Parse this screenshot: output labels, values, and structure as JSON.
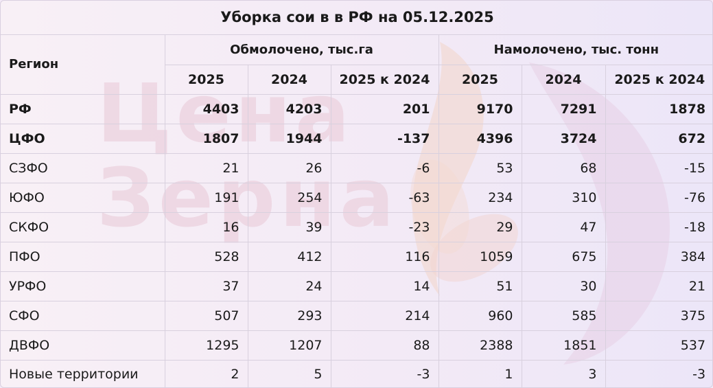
{
  "title": "Уборка сои в в РФ на 05.12.2025",
  "watermark": {
    "line1": "Цена",
    "line2": "Зерна"
  },
  "header": {
    "region_label": "Регион",
    "group1": "Обмолочено, тыс.га",
    "group2": "Намолочено, тыс. тонн",
    "sub": [
      "2025",
      "2024",
      "2025 к 2024",
      "2025",
      "2024",
      "2025 к 2024"
    ]
  },
  "rows": [
    {
      "region": "РФ",
      "bold": true,
      "values": [
        "4403",
        "4203",
        "201",
        "9170",
        "7291",
        "1878"
      ]
    },
    {
      "region": "ЦФО",
      "bold": true,
      "values": [
        "1807",
        "1944",
        "-137",
        "4396",
        "3724",
        "672"
      ]
    },
    {
      "region": "СЗФО",
      "bold": false,
      "values": [
        "21",
        "26",
        "-6",
        "53",
        "68",
        "-15"
      ]
    },
    {
      "region": "ЮФО",
      "bold": false,
      "values": [
        "191",
        "254",
        "-63",
        "234",
        "310",
        "-76"
      ]
    },
    {
      "region": "СКФО",
      "bold": false,
      "values": [
        "16",
        "39",
        "-23",
        "29",
        "47",
        "-18"
      ]
    },
    {
      "region": "ПФО",
      "bold": false,
      "values": [
        "528",
        "412",
        "116",
        "1059",
        "675",
        "384"
      ]
    },
    {
      "region": "УРФО",
      "bold": false,
      "values": [
        "37",
        "24",
        "14",
        "51",
        "30",
        "21"
      ]
    },
    {
      "region": "СФО",
      "bold": false,
      "values": [
        "507",
        "293",
        "214",
        "960",
        "585",
        "375"
      ]
    },
    {
      "region": "ДВФО",
      "bold": false,
      "values": [
        "1295",
        "1207",
        "88",
        "2388",
        "1851",
        "537"
      ]
    },
    {
      "region": "Новые территории",
      "bold": false,
      "values": [
        "2",
        "5",
        "-3",
        "1",
        "3",
        "-3"
      ]
    }
  ]
}
